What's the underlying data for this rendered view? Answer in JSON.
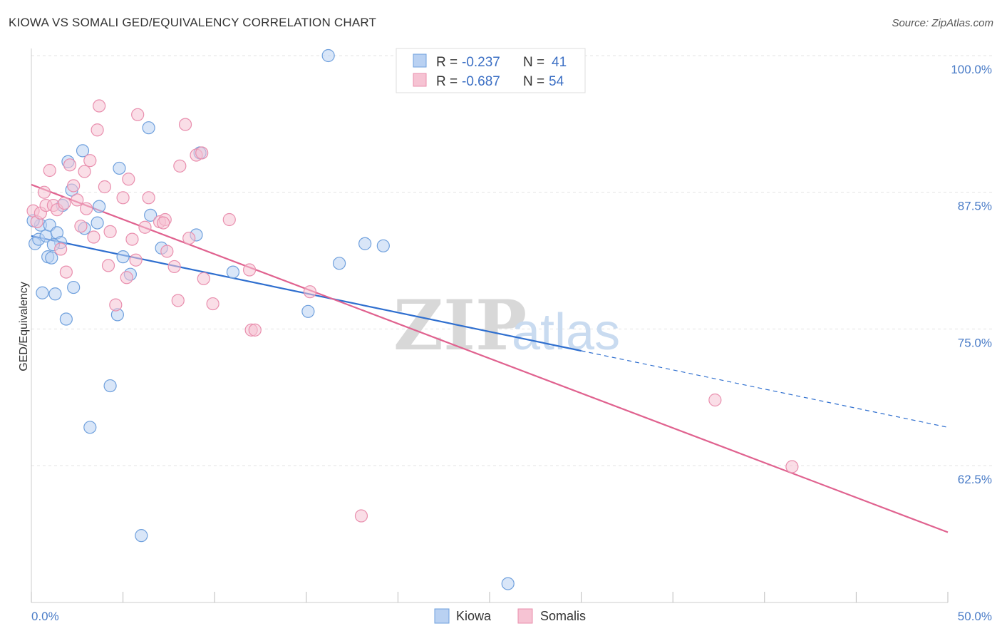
{
  "title": "KIOWA VS SOMALI GED/EQUIVALENCY CORRELATION CHART",
  "source": "Source: ZipAtlas.com",
  "watermark": {
    "part1": "ZIP",
    "part2": "atlas"
  },
  "legend": {
    "kiowa": {
      "r_label": "R = ",
      "r_value": "-0.237",
      "n_label": "N = ",
      "n_value": "41"
    },
    "somalis": {
      "r_label": "R = ",
      "r_value": "-0.687",
      "n_label": "N = ",
      "n_value": "54"
    }
  },
  "chart_data": {
    "type": "scatter",
    "xlabel": "",
    "ylabel": "GED/Equivalency",
    "xlim": [
      0,
      50
    ],
    "ylim": [
      52.5,
      101
    ],
    "x_tick_labels": [
      "0.0%",
      "50.0%"
    ],
    "y_ticks": [
      100.0,
      87.5,
      75.0,
      62.5
    ],
    "y_tick_labels": [
      "100.0%",
      "87.5%",
      "75.0%",
      "62.5%"
    ],
    "grid": true,
    "legend_position": "top-center",
    "series": [
      {
        "name": "Kiowa",
        "color": "#6fa0dd",
        "fill": "#b9d1f2",
        "trend": {
          "x0": 0,
          "y0": 83.5,
          "x1": 30,
          "y1": 73.0,
          "dashed_to_x": 50,
          "dashed_to_y": 66.0
        },
        "points": [
          [
            0.2,
            82.8
          ],
          [
            0.4,
            83.2
          ],
          [
            0.5,
            84.5
          ],
          [
            0.6,
            78.3
          ],
          [
            0.8,
            83.5
          ],
          [
            0.9,
            81.6
          ],
          [
            1.0,
            84.5
          ],
          [
            1.1,
            81.5
          ],
          [
            1.3,
            78.2
          ],
          [
            1.4,
            83.8
          ],
          [
            1.6,
            82.9
          ],
          [
            1.7,
            86.3
          ],
          [
            1.9,
            75.9
          ],
          [
            2.0,
            90.3
          ],
          [
            2.2,
            87.7
          ],
          [
            2.3,
            78.8
          ],
          [
            2.8,
            91.3
          ],
          [
            2.9,
            84.2
          ],
          [
            3.2,
            66.0
          ],
          [
            3.7,
            86.2
          ],
          [
            3.6,
            84.7
          ],
          [
            4.3,
            69.8
          ],
          [
            4.7,
            76.3
          ],
          [
            4.8,
            89.7
          ],
          [
            5.0,
            81.6
          ],
          [
            5.4,
            80.0
          ],
          [
            6.0,
            56.1
          ],
          [
            6.4,
            93.4
          ],
          [
            6.5,
            85.4
          ],
          [
            7.1,
            82.4
          ],
          [
            9.0,
            83.6
          ],
          [
            9.2,
            91.1
          ],
          [
            11.0,
            80.2
          ],
          [
            15.1,
            76.6
          ],
          [
            16.8,
            81.0
          ],
          [
            16.2,
            100.0
          ],
          [
            18.2,
            82.8
          ],
          [
            19.2,
            82.6
          ],
          [
            26.0,
            51.7
          ],
          [
            0.1,
            84.9
          ],
          [
            1.2,
            82.7
          ]
        ]
      },
      {
        "name": "Somalis",
        "color": "#e98fae",
        "fill": "#f6c3d3",
        "trend": {
          "x0": 0,
          "y0": 88.2,
          "x1": 50,
          "y1": 56.4
        },
        "points": [
          [
            0.1,
            85.8
          ],
          [
            0.3,
            84.8
          ],
          [
            0.5,
            85.6
          ],
          [
            0.7,
            87.5
          ],
          [
            0.8,
            86.3
          ],
          [
            1.0,
            89.5
          ],
          [
            1.2,
            86.3
          ],
          [
            1.4,
            85.9
          ],
          [
            1.6,
            82.3
          ],
          [
            1.8,
            86.5
          ],
          [
            1.9,
            80.2
          ],
          [
            2.1,
            90.0
          ],
          [
            2.3,
            88.1
          ],
          [
            2.5,
            86.8
          ],
          [
            2.7,
            84.4
          ],
          [
            2.9,
            89.4
          ],
          [
            3.0,
            86.0
          ],
          [
            3.2,
            90.4
          ],
          [
            3.4,
            83.4
          ],
          [
            3.7,
            95.4
          ],
          [
            3.6,
            93.2
          ],
          [
            4.0,
            88.0
          ],
          [
            4.2,
            80.8
          ],
          [
            4.3,
            83.9
          ],
          [
            4.6,
            77.2
          ],
          [
            5.0,
            87.0
          ],
          [
            5.2,
            79.7
          ],
          [
            5.3,
            88.7
          ],
          [
            5.5,
            83.2
          ],
          [
            5.7,
            81.3
          ],
          [
            5.8,
            94.6
          ],
          [
            6.2,
            84.3
          ],
          [
            6.4,
            87.0
          ],
          [
            7.0,
            84.8
          ],
          [
            7.3,
            85.0
          ],
          [
            7.4,
            82.1
          ],
          [
            7.8,
            80.7
          ],
          [
            8.0,
            77.6
          ],
          [
            8.1,
            89.9
          ],
          [
            8.4,
            93.7
          ],
          [
            8.6,
            83.3
          ],
          [
            9.0,
            90.9
          ],
          [
            9.3,
            91.1
          ],
          [
            9.4,
            79.6
          ],
          [
            9.9,
            77.3
          ],
          [
            10.8,
            85.0
          ],
          [
            11.9,
            80.4
          ],
          [
            12.0,
            74.9
          ],
          [
            12.2,
            74.9
          ],
          [
            15.2,
            78.4
          ],
          [
            18.0,
            57.9
          ],
          [
            37.3,
            68.5
          ],
          [
            41.5,
            62.4
          ],
          [
            7.2,
            84.7
          ]
        ]
      }
    ]
  },
  "bottom_legend": [
    "Kiowa",
    "Somalis"
  ]
}
